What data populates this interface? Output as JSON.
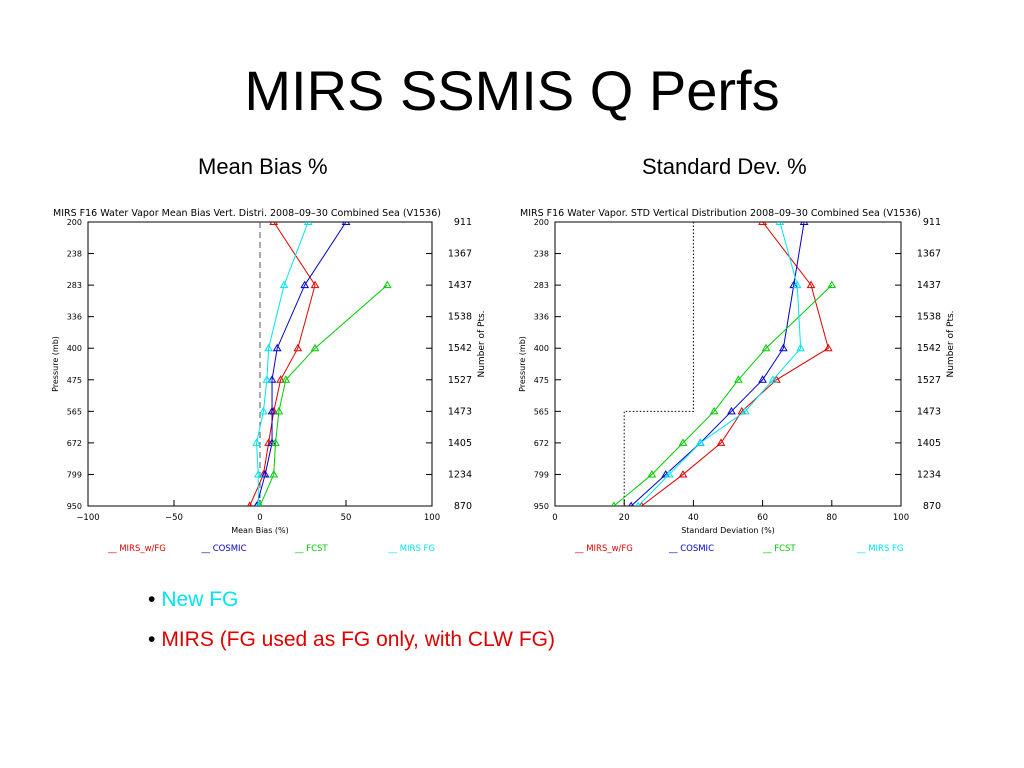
{
  "slide": {
    "title": "MIRS SSMIS Q Perfs",
    "left_caption": "Mean Bias %",
    "right_caption": "Standard Dev. %"
  },
  "bullets": [
    {
      "text": "New FG",
      "color": "#00e5ee"
    },
    {
      "text": "MIRS (FG used as FG only, with CLW FG)",
      "color": "#dd0000"
    }
  ],
  "chart_data": [
    {
      "type": "line",
      "title": "MIRS F16 Water Vapor Mean Bias Vert. Distri. 2008–09–30 Combined Sea (V1536)",
      "xlabel": "Mean Bias (%)",
      "ylabel": "Pressure (mb)",
      "right_label": "Number of Pts.",
      "xlim": [
        -100,
        100
      ],
      "xticks": [
        "−100",
        "−50",
        "0",
        "50",
        "100"
      ],
      "xtick_values": [
        -100,
        -50,
        0,
        50,
        100
      ],
      "pressure_levels": [
        "200",
        "238",
        "283",
        "336",
        "400",
        "475",
        "565",
        "672",
        "799",
        "950"
      ],
      "npts": [
        "911",
        "1367",
        "1437",
        "1538",
        "1542",
        "1527",
        "1473",
        "1405",
        "1234",
        "870"
      ],
      "reference_line_x": 0,
      "series": [
        {
          "name": "MIRS_w/FG",
          "color": "#e00000",
          "values": [
            8,
            null,
            32,
            null,
            22,
            12,
            8,
            5,
            2,
            -6
          ]
        },
        {
          "name": "COSMIC",
          "color": "#0000d0",
          "values": [
            50,
            null,
            26,
            null,
            10,
            7,
            7,
            7,
            3,
            -2
          ]
        },
        {
          "name": "FCST",
          "color": "#00cc00",
          "values": [
            null,
            null,
            74,
            null,
            32,
            15,
            11,
            9,
            8,
            0
          ]
        },
        {
          "name": "MIRS FG",
          "color": "#00e5ee",
          "values": [
            28,
            null,
            14,
            null,
            5,
            4,
            2,
            -2,
            -1,
            -1
          ]
        }
      ],
      "legend": [
        "__ MIRS_w/FG",
        "__ COSMIC",
        "__ FCST",
        "__ MIRS FG"
      ]
    },
    {
      "type": "line",
      "title": "MIRS F16 Water Vapor. STD Vertical Distribution 2008–09–30 Combined Sea (V1536)",
      "xlabel": "Standard Deviation (%)",
      "ylabel": "Pressure (mb)",
      "right_label": "Number of Pts.",
      "xlim": [
        0,
        100
      ],
      "xticks": [
        "0",
        "20",
        "40",
        "60",
        "80",
        "100"
      ],
      "xtick_values": [
        0,
        20,
        40,
        60,
        80,
        100
      ],
      "pressure_levels": [
        "200",
        "238",
        "283",
        "336",
        "400",
        "475",
        "565",
        "672",
        "799",
        "950"
      ],
      "npts": [
        "911",
        "1367",
        "1437",
        "1538",
        "1542",
        "1527",
        "1473",
        "1405",
        "1234",
        "870"
      ],
      "reference_step": [
        [
          40,
          200
        ],
        [
          40,
          565
        ],
        [
          20,
          565
        ],
        [
          20,
          950
        ]
      ],
      "series": [
        {
          "name": "MIRS_w/FG",
          "color": "#e00000",
          "values": [
            60,
            null,
            74,
            null,
            79,
            64,
            54,
            48,
            37,
            25
          ]
        },
        {
          "name": "COSMIC",
          "color": "#0000d0",
          "values": [
            72,
            null,
            69,
            null,
            66,
            60,
            51,
            42,
            32,
            22
          ]
        },
        {
          "name": "FCST",
          "color": "#00cc00",
          "values": [
            null,
            null,
            80,
            null,
            61,
            53,
            46,
            37,
            28,
            17
          ]
        },
        {
          "name": "MIRS FG",
          "color": "#00e5ee",
          "values": [
            65,
            null,
            70,
            null,
            71,
            63,
            55,
            42,
            33,
            24
          ]
        }
      ],
      "legend": [
        "__ MIRS_w/FG",
        "__ COSMIC",
        "__ FCST",
        "__ MIRS FG"
      ]
    }
  ]
}
